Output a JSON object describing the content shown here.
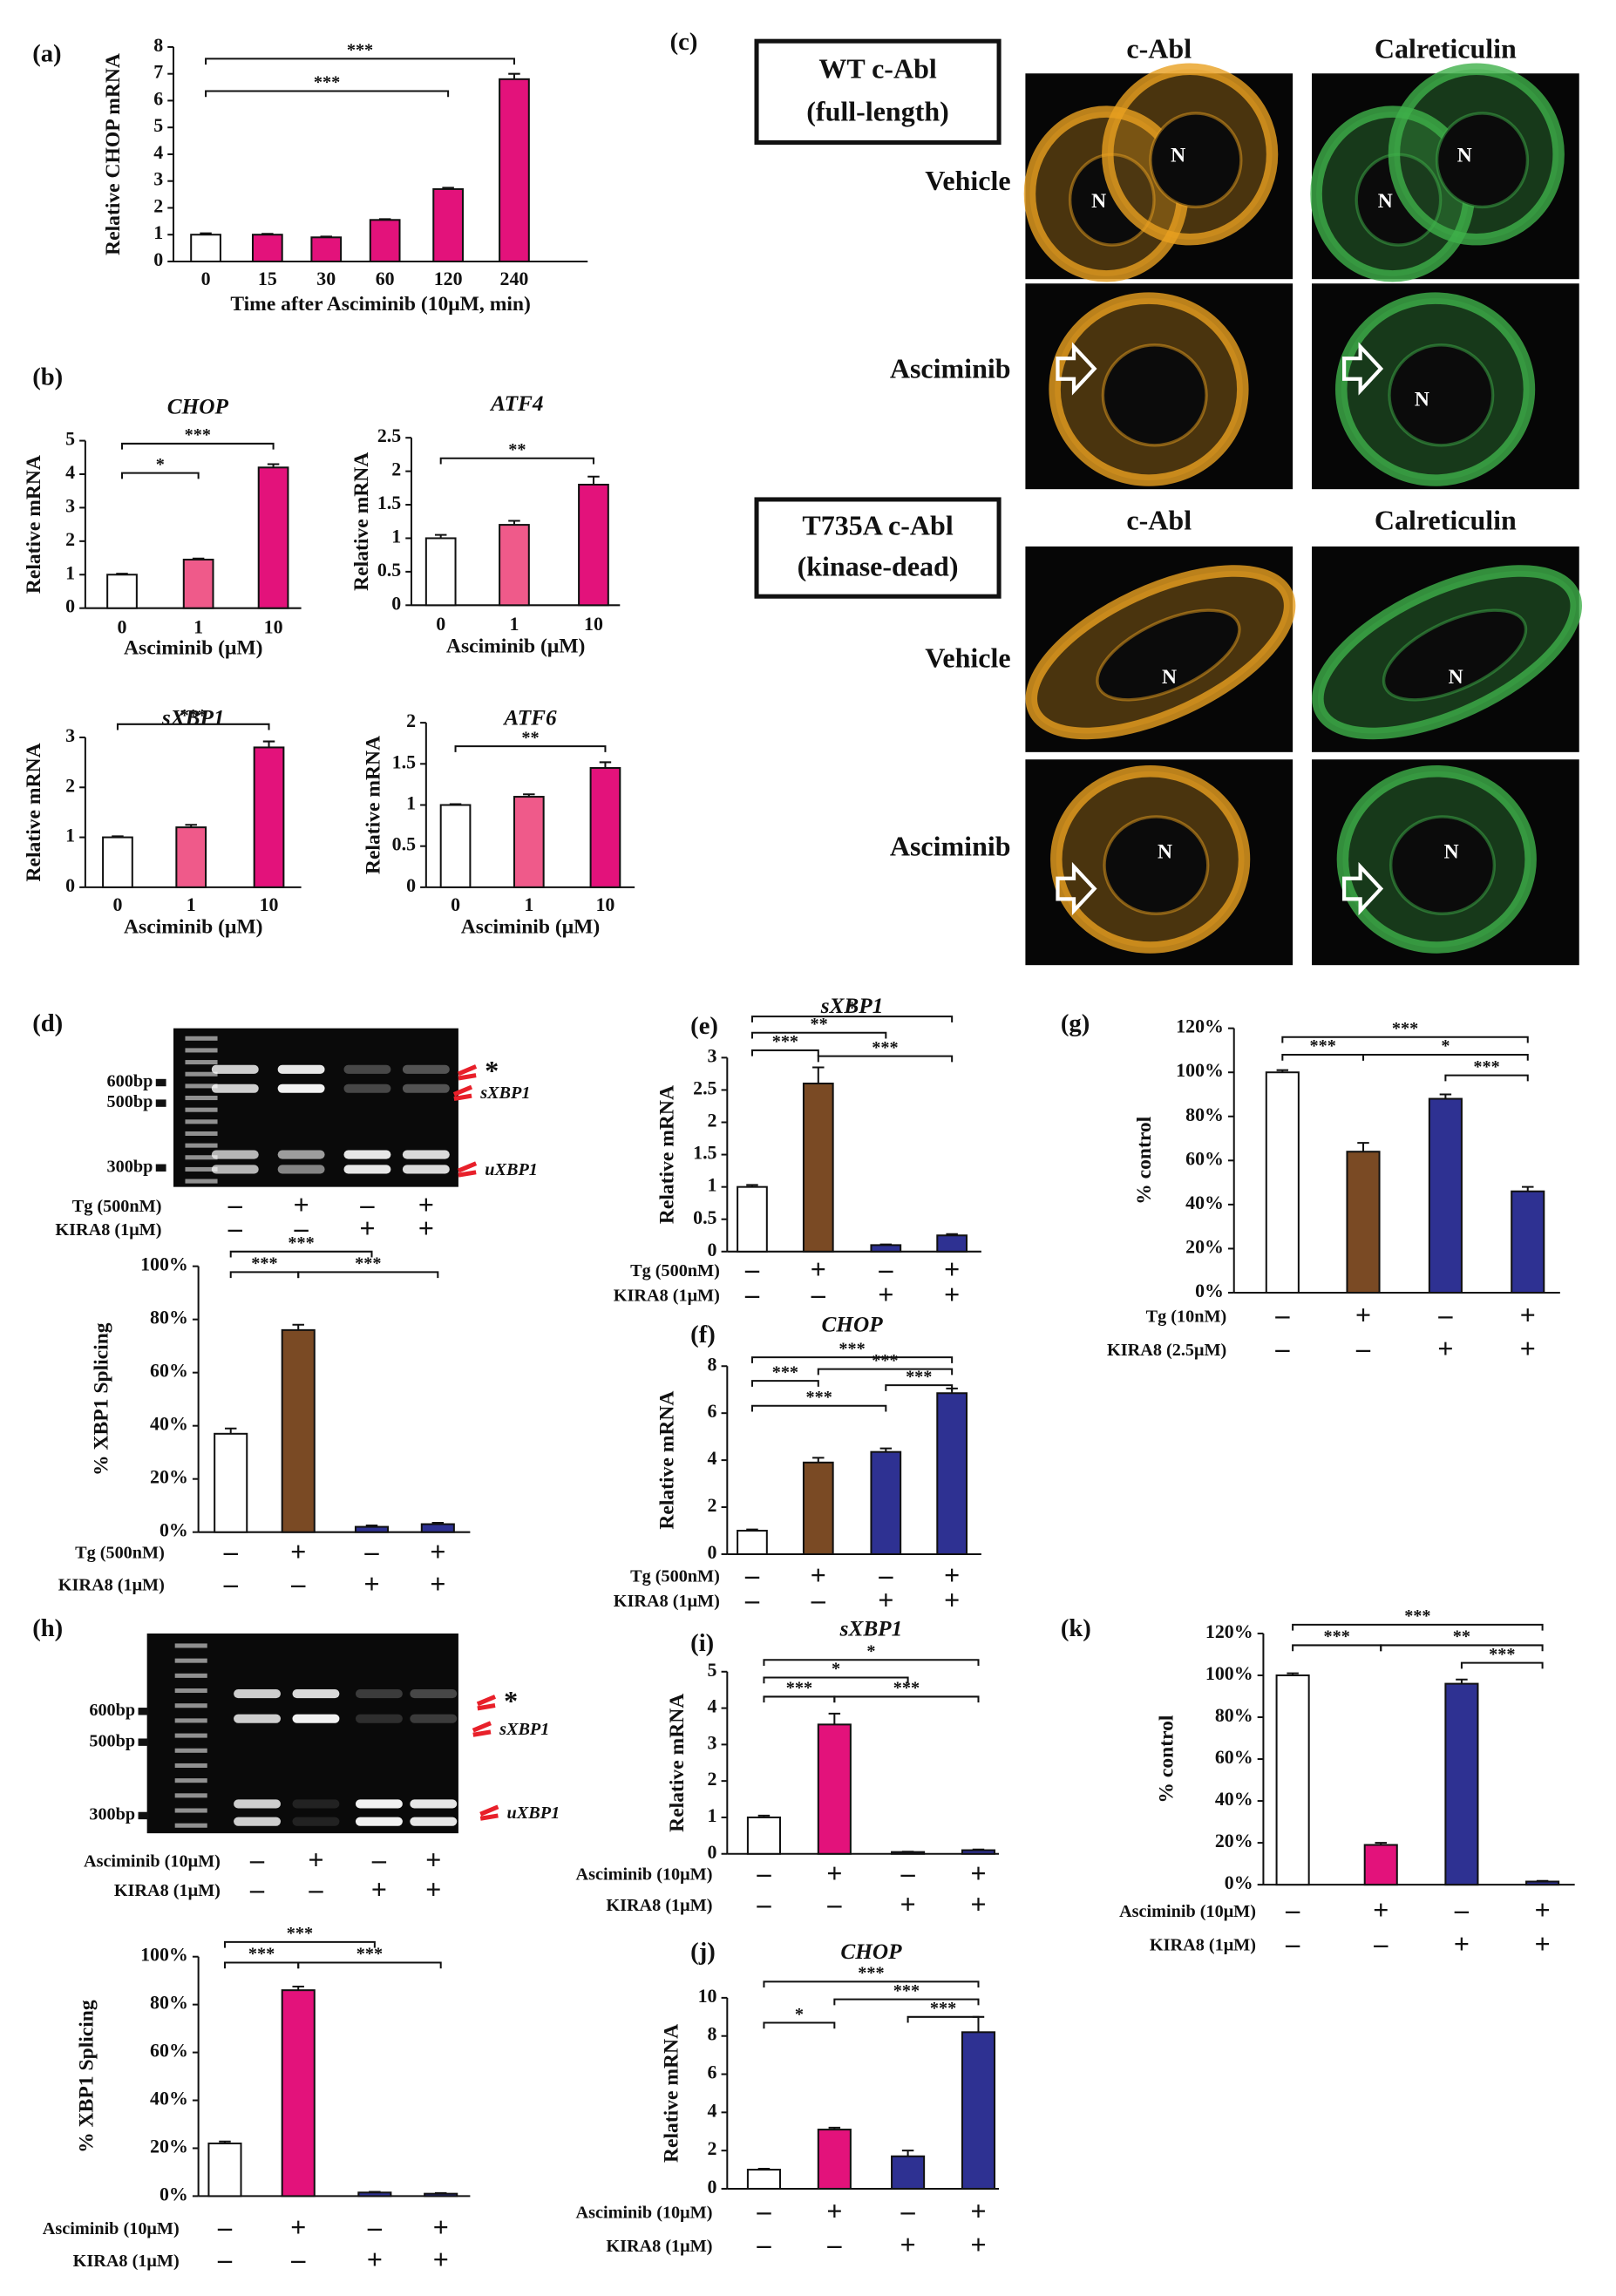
{
  "chart_data": [
    {
      "type": "bar",
      "panel": "(a)",
      "y_label": "Relative CHOP mRNA",
      "x_label": "Time after Asciminib (10μM, min)",
      "categories": [
        "0",
        "15",
        "30",
        "60",
        "120",
        "240"
      ],
      "values": [
        1,
        1,
        0.9,
        1.55,
        2.7,
        6.8
      ],
      "errors": [
        0.05,
        0.03,
        0.03,
        0.03,
        0.05,
        0.2
      ],
      "colors": [
        "#ffffff",
        "#e3127b",
        "#e3127b",
        "#e3127b",
        "#e3127b",
        "#e3127b"
      ],
      "ylim": [
        0,
        8
      ],
      "yticks": [
        0,
        1,
        2,
        3,
        4,
        5,
        6,
        7,
        8
      ],
      "significance": [
        {
          "from": 0,
          "to": 5,
          "label": "***"
        },
        {
          "from": 0,
          "to": 4,
          "label": "***"
        }
      ]
    },
    {
      "type": "bar",
      "panel": "(b)",
      "title": "CHOP",
      "y_label": "Relative mRNA",
      "x_label": "Asciminib (μM)",
      "categories": [
        "0",
        "1",
        "10"
      ],
      "values": [
        1,
        1.45,
        4.2
      ],
      "errors": [
        0.03,
        0.03,
        0.1
      ],
      "colors": [
        "#ffffff",
        "#ef5a8a",
        "#e3127b"
      ],
      "ylim": [
        0,
        5
      ],
      "yticks": [
        0,
        1,
        2,
        3,
        4,
        5
      ],
      "significance": [
        {
          "from": 0,
          "to": 2,
          "label": "***"
        },
        {
          "from": 0,
          "to": 1,
          "label": "*"
        }
      ]
    },
    {
      "type": "bar",
      "title": "ATF4",
      "y_label": "Relative mRNA",
      "x_label": "Asciminib (μM)",
      "categories": [
        "0",
        "1",
        "10"
      ],
      "values": [
        1,
        1.2,
        1.8
      ],
      "errors": [
        0.05,
        0.06,
        0.12
      ],
      "colors": [
        "#ffffff",
        "#ef5a8a",
        "#e3127b"
      ],
      "ylim": [
        0,
        2.5
      ],
      "yticks": [
        0,
        0.5,
        1,
        1.5,
        2,
        2.5
      ],
      "significance": [
        {
          "from": 0,
          "to": 2,
          "label": "**"
        }
      ]
    },
    {
      "type": "bar",
      "title": "sXBP1",
      "y_label": "Relative mRNA",
      "x_label": "Asciminib (μM)",
      "categories": [
        "0",
        "1",
        "10"
      ],
      "values": [
        1,
        1.2,
        2.8
      ],
      "errors": [
        0.02,
        0.05,
        0.12
      ],
      "colors": [
        "#ffffff",
        "#ef5a8a",
        "#e3127b"
      ],
      "ylim": [
        0,
        3
      ],
      "yticks": [
        0,
        1,
        2,
        3
      ],
      "significance": [
        {
          "from": 0,
          "to": 2,
          "label": "***"
        }
      ]
    },
    {
      "type": "bar",
      "title": "ATF6",
      "y_label": "Relative mRNA",
      "x_label": "Asciminib (μM)",
      "categories": [
        "0",
        "1",
        "10"
      ],
      "values": [
        1,
        1.1,
        1.45
      ],
      "errors": [
        0.01,
        0.03,
        0.07
      ],
      "colors": [
        "#ffffff",
        "#ef5a8a",
        "#e3127b"
      ],
      "ylim": [
        0,
        2
      ],
      "yticks": [
        0,
        0.5,
        1,
        1.5,
        2
      ],
      "significance": [
        {
          "from": 0,
          "to": 2,
          "label": "**"
        }
      ]
    },
    {
      "type": "bar",
      "y_label": "% XBP1 Splicing",
      "treatments": [
        {
          "name": "Tg (500nM)",
          "levels": [
            "–",
            "+",
            "–",
            "+"
          ]
        },
        {
          "name": "KIRA8 (1μM)",
          "levels": [
            "–",
            "–",
            "+",
            "+"
          ]
        }
      ],
      "values": [
        37,
        76,
        2,
        3
      ],
      "errors": [
        2,
        2,
        0.5,
        0.5
      ],
      "colors": [
        "#ffffff",
        "#7a4a24",
        "#2e3192",
        "#2e3192"
      ],
      "ylim": [
        0,
        100
      ],
      "yticks": [
        {
          "value": 0,
          "label": "0%"
        },
        {
          "value": 20,
          "label": "20%"
        },
        {
          "value": 40,
          "label": "40%"
        },
        {
          "value": 60,
          "label": "60%"
        },
        {
          "value": 80,
          "label": "80%"
        },
        {
          "value": 100,
          "label": "100%"
        }
      ],
      "significance": [
        {
          "from": 0,
          "to": 2,
          "label": "***"
        },
        {
          "from": 0,
          "to": 1,
          "label": "***"
        },
        {
          "from": 1,
          "to": 3,
          "label": "***"
        }
      ]
    },
    {
      "type": "bar",
      "panel": "(e)",
      "title": "sXBP1",
      "y_label": "Relative mRNA",
      "treatments": [
        {
          "name": "Tg (500nM)",
          "levels": [
            "–",
            "+",
            "–",
            "+"
          ]
        },
        {
          "name": "KIRA8 (1μM)",
          "levels": [
            "–",
            "–",
            "+",
            "+"
          ]
        }
      ],
      "values": [
        1,
        2.6,
        0.1,
        0.25
      ],
      "errors": [
        0.03,
        0.25,
        0.01,
        0.02
      ],
      "colors": [
        "#ffffff",
        "#7a4a24",
        "#2e3192",
        "#2e3192"
      ],
      "ylim": [
        0,
        3
      ],
      "yticks": [
        0,
        0.5,
        1,
        1.5,
        2,
        2.5,
        3
      ],
      "significance": [
        {
          "from": 0,
          "to": 3,
          "label": "*"
        },
        {
          "from": 0,
          "to": 2,
          "label": "**"
        },
        {
          "from": 0,
          "to": 1,
          "label": "***"
        },
        {
          "from": 1,
          "to": 3,
          "label": "***"
        }
      ]
    },
    {
      "type": "bar",
      "panel": "(f)",
      "title": "CHOP",
      "y_label": "Relative mRNA",
      "treatments": [
        {
          "name": "Tg (500nM)",
          "levels": [
            "–",
            "+",
            "–",
            "+"
          ]
        },
        {
          "name": "KIRA8 (1μM)",
          "levels": [
            "–",
            "–",
            "+",
            "+"
          ]
        }
      ],
      "values": [
        1,
        3.9,
        4.35,
        6.85
      ],
      "errors": [
        0.05,
        0.2,
        0.15,
        0.2
      ],
      "colors": [
        "#ffffff",
        "#7a4a24",
        "#2e3192",
        "#2e3192"
      ],
      "ylim": [
        0,
        8
      ],
      "yticks": [
        0,
        2,
        4,
        6,
        8
      ],
      "significance": [
        {
          "from": 0,
          "to": 3,
          "label": "***"
        },
        {
          "from": 1,
          "to": 3,
          "label": "***"
        },
        {
          "from": 0,
          "to": 1,
          "label": "***"
        },
        {
          "from": 2,
          "to": 3,
          "label": "***"
        },
        {
          "from": 0,
          "to": 2,
          "label": "***"
        }
      ]
    },
    {
      "type": "bar",
      "panel": "(g)",
      "y_label": "% control",
      "treatments": [
        {
          "name": "Tg (10nM)",
          "levels": [
            "–",
            "+",
            "–",
            "+"
          ]
        },
        {
          "name": "KIRA8 (2.5μM)",
          "levels": [
            "–",
            "–",
            "+",
            "+"
          ]
        }
      ],
      "values": [
        100,
        64,
        88,
        46
      ],
      "errors": [
        1,
        4,
        2,
        2
      ],
      "colors": [
        "#ffffff",
        "#7a4a24",
        "#2e3192",
        "#2e3192"
      ],
      "ylim": [
        0,
        120
      ],
      "yticks": [
        {
          "value": 0,
          "label": "0%"
        },
        {
          "value": 20,
          "label": "20%"
        },
        {
          "value": 40,
          "label": "40%"
        },
        {
          "value": 60,
          "label": "60%"
        },
        {
          "value": 80,
          "label": "80%"
        },
        {
          "value": 100,
          "label": "100%"
        },
        {
          "value": 120,
          "label": "120%"
        }
      ],
      "significance": [
        {
          "from": 0,
          "to": 3,
          "label": "***"
        },
        {
          "from": 0,
          "to": 1,
          "label": "***"
        },
        {
          "from": 1,
          "to": 3,
          "label": "*"
        },
        {
          "from": 2,
          "to": 3,
          "label": "***"
        }
      ]
    },
    {
      "type": "bar",
      "y_label": "% XBP1 Splicing",
      "treatments": [
        {
          "name": "Asciminib (10μM)",
          "levels": [
            "–",
            "+",
            "–",
            "+"
          ]
        },
        {
          "name": "KIRA8 (1μM)",
          "levels": [
            "–",
            "–",
            "+",
            "+"
          ]
        }
      ],
      "values": [
        22,
        86,
        1.5,
        1
      ],
      "errors": [
        0.8,
        1.5,
        0.3,
        0.3
      ],
      "colors": [
        "#ffffff",
        "#e3127b",
        "#2e3192",
        "#2e3192"
      ],
      "ylim": [
        0,
        100
      ],
      "yticks": [
        {
          "value": 0,
          "label": "0%"
        },
        {
          "value": 20,
          "label": "20%"
        },
        {
          "value": 40,
          "label": "40%"
        },
        {
          "value": 60,
          "label": "60%"
        },
        {
          "value": 80,
          "label": "80%"
        },
        {
          "value": 100,
          "label": "100%"
        }
      ],
      "significance": [
        {
          "from": 0,
          "to": 2,
          "label": "***"
        },
        {
          "from": 0,
          "to": 1,
          "label": "***"
        },
        {
          "from": 1,
          "to": 3,
          "label": "***"
        }
      ]
    },
    {
      "type": "bar",
      "panel": "(i)",
      "title": "sXBP1",
      "y_label": "Relative mRNA",
      "treatments": [
        {
          "name": "Asciminib (10μM)",
          "levels": [
            "–",
            "+",
            "–",
            "+"
          ]
        },
        {
          "name": "KIRA8 (1μM)",
          "levels": [
            "–",
            "–",
            "+",
            "+"
          ]
        }
      ],
      "values": [
        1,
        3.55,
        0.05,
        0.1
      ],
      "errors": [
        0.05,
        0.3,
        0.01,
        0.02
      ],
      "colors": [
        "#ffffff",
        "#e3127b",
        "#2e3192",
        "#2e3192"
      ],
      "ylim": [
        0,
        5
      ],
      "yticks": [
        0,
        1,
        2,
        3,
        4,
        5
      ],
      "significance": [
        {
          "from": 0,
          "to": 3,
          "label": "*"
        },
        {
          "from": 0,
          "to": 2,
          "label": "*"
        },
        {
          "from": 0,
          "to": 1,
          "label": "***"
        },
        {
          "from": 1,
          "to": 3,
          "label": "***"
        }
      ]
    },
    {
      "type": "bar",
      "panel": "(j)",
      "title": "CHOP",
      "y_label": "Relative mRNA",
      "treatments": [
        {
          "name": "Asciminib (10μM)",
          "levels": [
            "–",
            "+",
            "–",
            "+"
          ]
        },
        {
          "name": "KIRA8 (1μM)",
          "levels": [
            "–",
            "–",
            "+",
            "+"
          ]
        }
      ],
      "values": [
        1,
        3.1,
        1.7,
        8.2
      ],
      "errors": [
        0.05,
        0.1,
        0.3,
        0.8
      ],
      "colors": [
        "#ffffff",
        "#e3127b",
        "#2e3192",
        "#2e3192"
      ],
      "ylim": [
        0,
        10
      ],
      "yticks": [
        0,
        2,
        4,
        6,
        8,
        10
      ],
      "significance": [
        {
          "from": 0,
          "to": 3,
          "label": "***"
        },
        {
          "from": 1,
          "to": 3,
          "label": "***"
        },
        {
          "from": 0,
          "to": 1,
          "label": "*"
        },
        {
          "from": 2,
          "to": 3,
          "label": "***"
        }
      ]
    },
    {
      "type": "bar",
      "panel": "(k)",
      "y_label": "% control",
      "treatments": [
        {
          "name": "Asciminib (10μM)",
          "levels": [
            "–",
            "+",
            "–",
            "+"
          ]
        },
        {
          "name": "KIRA8 (1μM)",
          "levels": [
            "–",
            "–",
            "+",
            "+"
          ]
        }
      ],
      "values": [
        100,
        19,
        96,
        1.5
      ],
      "errors": [
        1,
        1,
        2,
        0.3
      ],
      "colors": [
        "#ffffff",
        "#e3127b",
        "#2e3192",
        "#2e3192"
      ],
      "ylim": [
        0,
        120
      ],
      "yticks": [
        {
          "value": 0,
          "label": "0%"
        },
        {
          "value": 20,
          "label": "20%"
        },
        {
          "value": 40,
          "label": "40%"
        },
        {
          "value": 60,
          "label": "60%"
        },
        {
          "value": 80,
          "label": "80%"
        },
        {
          "value": 100,
          "label": "100%"
        },
        {
          "value": 120,
          "label": "120%"
        }
      ],
      "significance": [
        {
          "from": 0,
          "to": 3,
          "label": "***"
        },
        {
          "from": 0,
          "to": 1,
          "label": "***"
        },
        {
          "from": 1,
          "to": 3,
          "label": "**"
        },
        {
          "from": 2,
          "to": 3,
          "label": "***"
        }
      ]
    }
  ],
  "gels": [
    {
      "panel": "(d)",
      "markers": [
        "600bp",
        "500bp",
        "300bp"
      ],
      "band_labels": [
        "*",
        "sXBP1",
        "uXBP1"
      ],
      "treatments": [
        {
          "name": "Tg (500nM)",
          "levels": [
            "–",
            "+",
            "–",
            "+"
          ]
        },
        {
          "name": "KIRA8 (1μM)",
          "levels": [
            "–",
            "–",
            "+",
            "+"
          ]
        }
      ]
    },
    {
      "panel": "(h)",
      "markers": [
        "600bp",
        "500bp",
        "300bp"
      ],
      "band_labels": [
        "*",
        "sXBP1",
        "uXBP1"
      ],
      "treatments": [
        {
          "name": "Asciminib (10μM)",
          "levels": [
            "–",
            "+",
            "–",
            "+"
          ]
        },
        {
          "name": "KIRA8 (1μM)",
          "levels": [
            "–",
            "–",
            "+",
            "+"
          ]
        }
      ]
    }
  ],
  "micrographs": {
    "panel": "(c)",
    "nucleus_label": "N",
    "constructs": [
      {
        "name": "WT c-Abl",
        "detail": "(full-length)",
        "channels": [
          "c-Abl",
          "Calreticulin"
        ],
        "conditions": [
          "Vehicle",
          "Asciminib"
        ]
      },
      {
        "name": "T735A c-Abl",
        "detail": "(kinase-dead)",
        "channels": [
          "c-Abl",
          "Calreticulin"
        ],
        "conditions": [
          "Vehicle",
          "Asciminib"
        ]
      }
    ]
  }
}
